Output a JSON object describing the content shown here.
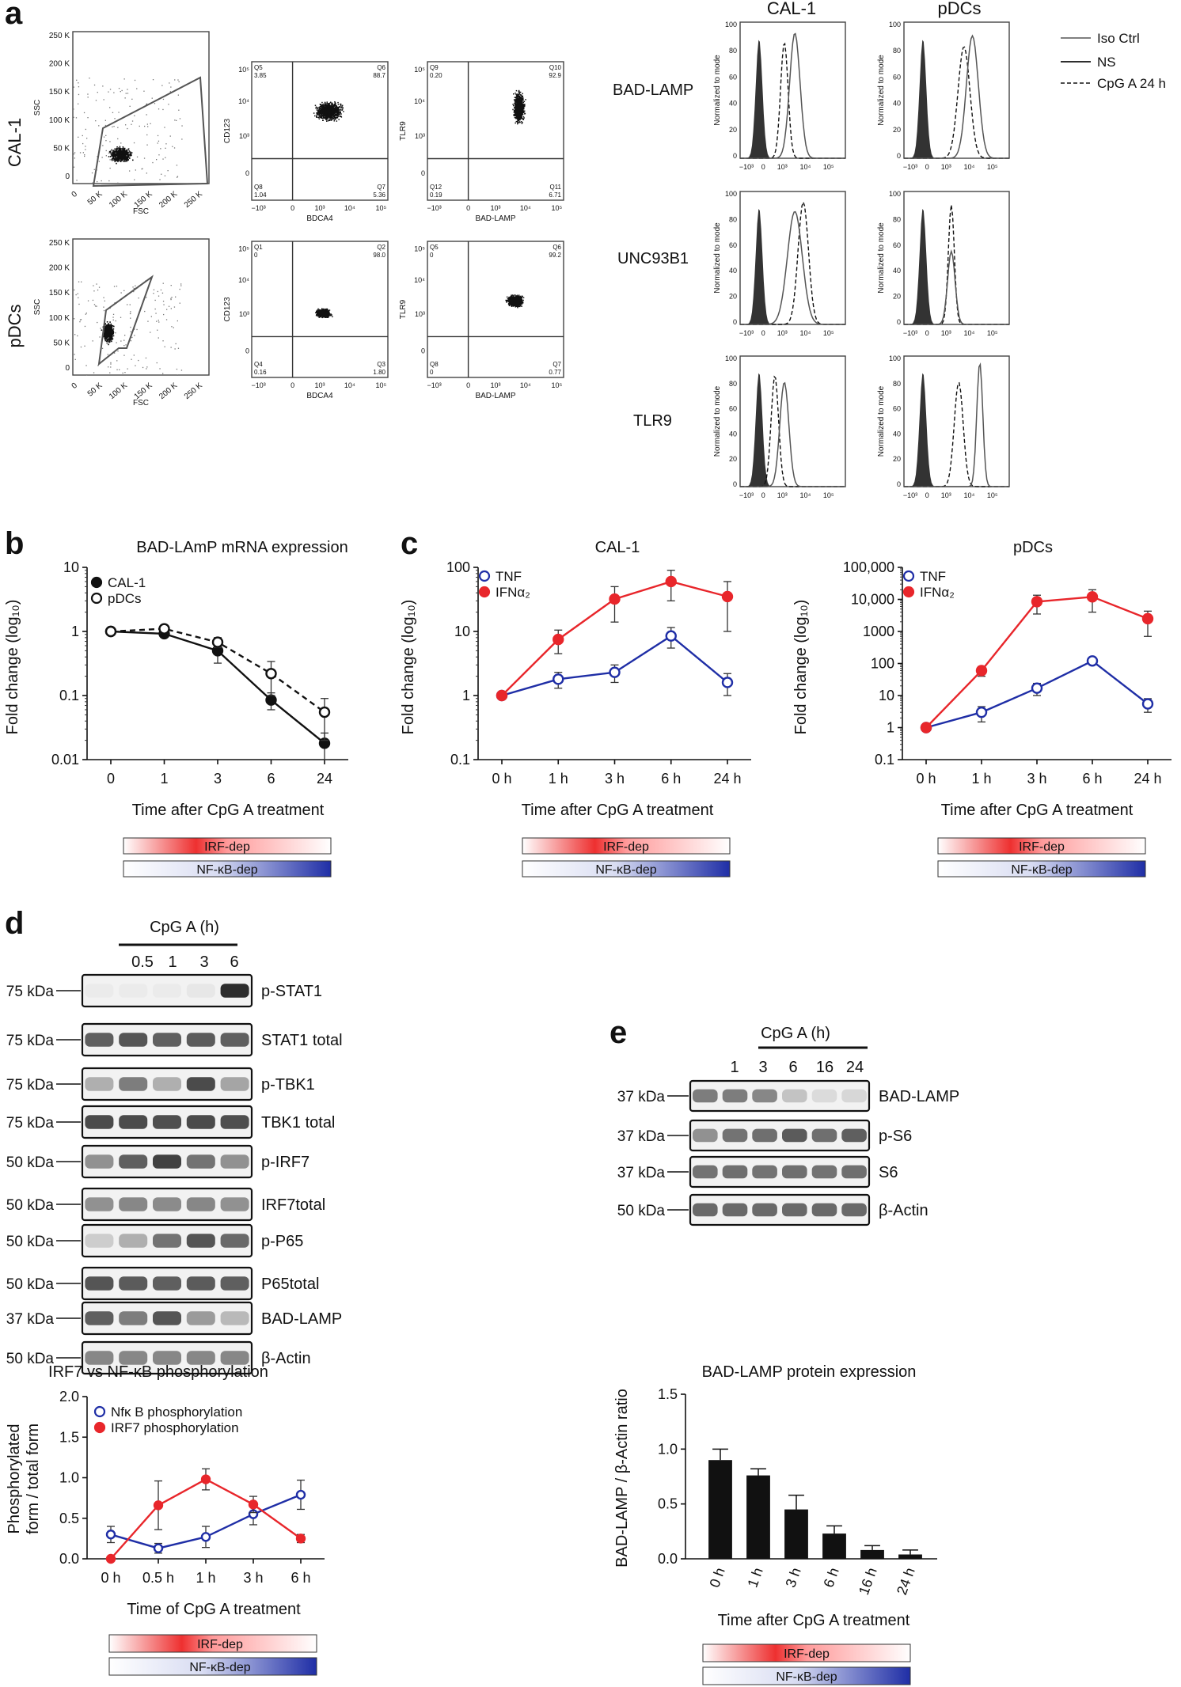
{
  "panels": {
    "a": "a",
    "b": "b",
    "c": "c",
    "d": "d",
    "e": "e"
  },
  "panel_a": {
    "row_labels": [
      "CAL-1",
      "pDCs"
    ],
    "gate_axes": {
      "fsc": "FSC",
      "ssc": "SSC"
    },
    "scatter_ticks_y": [
      "250 K",
      "200 K",
      "150 K",
      "100 K",
      "50 K",
      "0"
    ],
    "scatter_ticks_x": [
      "0",
      "50 K",
      "100 K",
      "150 K",
      "200 K",
      "250 K"
    ],
    "log_ticks": [
      "−10³",
      "0",
      "10³",
      "10⁴",
      "10⁵"
    ],
    "quad_plots": [
      {
        "xlabel": "BDCA4",
        "ylabel": "CD123",
        "q": [
          "Q5",
          "Q6",
          "Q8",
          "Q7"
        ],
        "v": [
          "3.85",
          "88.7",
          "1.04",
          "5.36"
        ]
      },
      {
        "xlabel": "BAD-LAMP",
        "ylabel": "TLR9",
        "q": [
          "Q9",
          "Q10",
          "Q12",
          "Q11"
        ],
        "v": [
          "0.20",
          "92.9",
          "0.19",
          "6.71"
        ]
      },
      {
        "xlabel": "BDCA4",
        "ylabel": "CD123",
        "q": [
          "Q1",
          "Q2",
          "Q4",
          "Q3"
        ],
        "v": [
          "0",
          "98.0",
          "0.16",
          "1.80"
        ]
      },
      {
        "xlabel": "BAD-LAMP",
        "ylabel": "TLR9",
        "q": [
          "Q5",
          "Q6",
          "Q8",
          "Q7"
        ],
        "v": [
          "0",
          "99.2",
          "0",
          "0.77"
        ]
      }
    ],
    "histo_cols": [
      "CAL-1",
      "pDCs"
    ],
    "histo_rows": [
      "BAD-LAMP",
      "UNC93B1",
      "TLR9"
    ],
    "histo_ylabel": "Normalized to mode",
    "histo_yticks": [
      "100",
      "80",
      "60",
      "40",
      "20",
      "0"
    ],
    "legend": [
      "Iso Ctrl",
      "NS",
      "CpG A 24 h"
    ]
  },
  "panel_b": {
    "title": "BAD-LAmP mRNA expression",
    "ylabel": "Fold change (log₁₀)",
    "xlabel": "Time after CpG A treatment",
    "yticks": [
      "10",
      "1",
      "0.1",
      "0.01"
    ],
    "xticks": [
      "0",
      "1",
      "3",
      "6",
      "24"
    ],
    "legend": [
      "CAL-1",
      "pDCs"
    ]
  },
  "panel_c": {
    "titles": [
      "CAL-1",
      "pDCs"
    ],
    "ylabel": "Fold change (log₁₀)",
    "xlabel": "Time after CpG A treatment",
    "yticks_left": [
      "100",
      "10",
      "1",
      "0.1"
    ],
    "yticks_right": [
      "100,000",
      "10,000",
      "1000",
      "100",
      "10",
      "1",
      "0.1"
    ],
    "xticks": [
      "0 h",
      "1 h",
      "3 h",
      "6 h",
      "24 h"
    ],
    "legend": [
      "TNF",
      "IFNα₂"
    ]
  },
  "bars": {
    "irf": "IRF-dep",
    "nfkb": "NF-κB-dep"
  },
  "panel_d": {
    "header": "CpG A (h)",
    "times": [
      "0.5",
      "1",
      "3",
      "6"
    ],
    "kda": [
      "75 kDa",
      "75 kDa",
      "75 kDa",
      "75 kDa",
      "50 kDa",
      "50 kDa",
      "50 kDa",
      "50 kDa",
      "37 kDa",
      "50 kDa"
    ],
    "blots": [
      "p-STAT1",
      "STAT1 total",
      "p-TBK1",
      "TBK1 total",
      "p-IRF7",
      "IRF7total",
      "p-P65",
      "P65total",
      "BAD-LAMP",
      "β-Actin"
    ],
    "title": "IRF7 vs NF-κB phosphorylation",
    "ylabel1": "Phosphorylated",
    "ylabel2": "form / total form",
    "xlabel": "Time of CpG A treatment",
    "yticks": [
      "2.0",
      "1.5",
      "1.0",
      "0.5",
      "0.0"
    ],
    "xticks": [
      "0 h",
      "0.5 h",
      "1 h",
      "3 h",
      "6 h"
    ],
    "legend": [
      "Nfκ B phosphorylation",
      "IRF7 phosphorylation"
    ]
  },
  "panel_e": {
    "header": "CpG A (h)",
    "times": [
      "1",
      "3",
      "6",
      "16",
      "24"
    ],
    "kda": [
      "37 kDa",
      "37 kDa",
      "37 kDa",
      "50 kDa"
    ],
    "blots": [
      "BAD-LAMP",
      "p-S6",
      "S6",
      "β-Actin"
    ],
    "title": "BAD-LAMP protein expression",
    "ylabel": "BAD-LAMP / β-Actin ratio",
    "xlabel": "Time after CpG A treatment",
    "yticks": [
      "1.5",
      "1.0",
      "0.5",
      "0.0"
    ],
    "xticks": [
      "0 h",
      "1 h",
      "3 h",
      "6 h",
      "16 h",
      "24 h"
    ]
  },
  "colors": {
    "blue": "#1f2ea6",
    "red": "#e8262b",
    "black": "#111111"
  },
  "chart_data": [
    {
      "type": "line",
      "id": "b",
      "x": [
        "0",
        "1",
        "3",
        "6",
        "24"
      ],
      "yscale": "log",
      "ylim": [
        0.01,
        10
      ],
      "series": [
        {
          "name": "CAL-1",
          "values": [
            1,
            0.92,
            0.5,
            0.085,
            0.018
          ],
          "err": [
            0.05,
            0.1,
            0.18,
            0.025,
            0.008
          ]
        },
        {
          "name": "pDCs",
          "values": [
            1,
            1.1,
            0.68,
            0.22,
            0.055
          ],
          "err": [
            0.05,
            0.15,
            0.12,
            0.12,
            0.035
          ]
        }
      ]
    },
    {
      "type": "line",
      "id": "c-cal1",
      "x": [
        "0 h",
        "1 h",
        "3 h",
        "6 h",
        "24 h"
      ],
      "yscale": "log",
      "ylim": [
        0.1,
        100
      ],
      "series": [
        {
          "name": "TNF",
          "values": [
            1,
            1.8,
            2.3,
            8.5,
            1.6
          ],
          "err": [
            0.05,
            0.5,
            0.7,
            3,
            0.6
          ]
        },
        {
          "name": "IFNα₂",
          "values": [
            1,
            7.5,
            32,
            60,
            35
          ],
          "err": [
            0.05,
            3,
            18,
            30,
            25
          ]
        }
      ]
    },
    {
      "type": "line",
      "id": "c-pdc",
      "x": [
        "0 h",
        "1 h",
        "3 h",
        "6 h",
        "24 h"
      ],
      "yscale": "log",
      "ylim": [
        0.1,
        100000
      ],
      "series": [
        {
          "name": "TNF",
          "values": [
            1,
            3,
            17,
            120,
            5.5
          ],
          "err": [
            0.05,
            1.5,
            7,
            25,
            2.5
          ]
        },
        {
          "name": "IFNα₂",
          "values": [
            1,
            60,
            8500,
            12000,
            2500
          ],
          "err": [
            0.05,
            20,
            5000,
            8000,
            1800
          ]
        }
      ]
    },
    {
      "type": "line",
      "id": "d",
      "x": [
        "0 h",
        "0.5 h",
        "1 h",
        "3 h",
        "6 h"
      ],
      "ylim": [
        0,
        2
      ],
      "series": [
        {
          "name": "Nfκ B phosphorylation",
          "values": [
            0.3,
            0.13,
            0.27,
            0.55,
            0.79
          ],
          "err": [
            0.1,
            0.06,
            0.13,
            0.13,
            0.18
          ]
        },
        {
          "name": "IRF7 phosphorylation",
          "values": [
            0,
            0.66,
            0.98,
            0.67,
            0.25
          ],
          "err": [
            0,
            0.3,
            0.13,
            0.1,
            0.05
          ]
        }
      ]
    },
    {
      "type": "bar",
      "id": "e",
      "categories": [
        "0 h",
        "1 h",
        "3 h",
        "6 h",
        "16 h",
        "24 h"
      ],
      "ylim": [
        0,
        1.5
      ],
      "values": [
        0.9,
        0.76,
        0.45,
        0.23,
        0.08,
        0.04
      ],
      "err": [
        0.1,
        0.06,
        0.13,
        0.07,
        0.04,
        0.04
      ]
    }
  ]
}
